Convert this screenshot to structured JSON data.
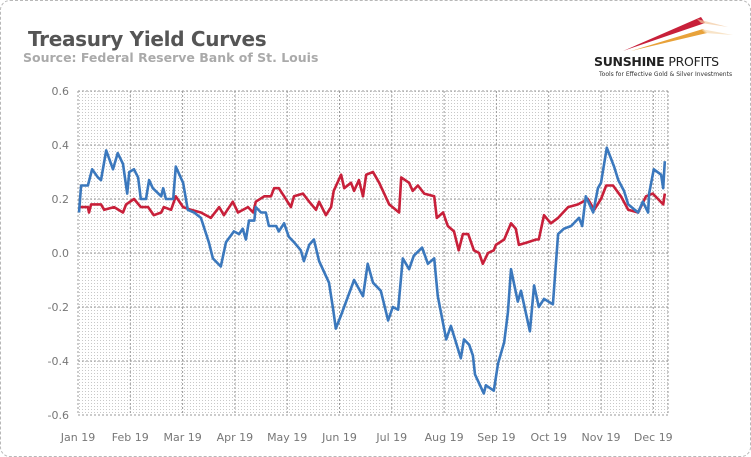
{
  "header": {
    "title": "Treasury Yield Curves",
    "source": "Source: Federal Reserve Bank of St. Louis"
  },
  "logo": {
    "name_bold": "SUNSHINE",
    "name_thin": "PROFITS",
    "tagline": "Tools for Effective Gold & Silver Investments"
  },
  "chart_data": {
    "type": "line",
    "title": "Treasury Yield Curves",
    "xlabel": "",
    "ylabel": "",
    "x_units": "month index (0 = Jan 1, 2019)",
    "xlim": [
      0,
      11.3
    ],
    "ylim": [
      -0.6,
      0.6
    ],
    "yticks": [
      -0.6,
      -0.4,
      -0.2,
      0.0,
      0.2,
      0.4,
      0.6
    ],
    "ytick_labels": [
      "-0.6",
      "-0.4",
      "-0.2",
      "0.0",
      "0.2",
      "0.4",
      "0.6"
    ],
    "xtick_labels": [
      "Jan 19",
      "Feb 19",
      "Mar 19",
      "Apr 19",
      "May 19",
      "Jun 19",
      "Jul 19",
      "Aug 19",
      "Sep 19",
      "Oct 19",
      "Nov 19",
      "Dec 19"
    ],
    "grid": true,
    "series": [
      {
        "name": "blue",
        "color": "#3b78bd",
        "points": [
          [
            0.02,
            0.15
          ],
          [
            0.06,
            0.25
          ],
          [
            0.19,
            0.25
          ],
          [
            0.27,
            0.31
          ],
          [
            0.38,
            0.28
          ],
          [
            0.44,
            0.27
          ],
          [
            0.54,
            0.38
          ],
          [
            0.67,
            0.31
          ],
          [
            0.76,
            0.37
          ],
          [
            0.86,
            0.33
          ],
          [
            0.94,
            0.22
          ],
          [
            0.98,
            0.3
          ],
          [
            1.07,
            0.31
          ],
          [
            1.15,
            0.28
          ],
          [
            1.2,
            0.2
          ],
          [
            1.3,
            0.2
          ],
          [
            1.36,
            0.27
          ],
          [
            1.43,
            0.24
          ],
          [
            1.59,
            0.21
          ],
          [
            1.63,
            0.24
          ],
          [
            1.68,
            0.2
          ],
          [
            1.82,
            0.2
          ],
          [
            1.87,
            0.32
          ],
          [
            2.01,
            0.26
          ],
          [
            2.1,
            0.16
          ],
          [
            2.22,
            0.15
          ],
          [
            2.35,
            0.13
          ],
          [
            2.5,
            0.04
          ],
          [
            2.58,
            -0.02
          ],
          [
            2.73,
            -0.05
          ],
          [
            2.83,
            0.04
          ],
          [
            2.98,
            0.08
          ],
          [
            3.08,
            0.07
          ],
          [
            3.15,
            0.09
          ],
          [
            3.21,
            0.05
          ],
          [
            3.27,
            0.12
          ],
          [
            3.37,
            0.12
          ],
          [
            3.4,
            0.17
          ],
          [
            3.5,
            0.15
          ],
          [
            3.59,
            0.15
          ],
          [
            3.65,
            0.1
          ],
          [
            3.79,
            0.1
          ],
          [
            3.84,
            0.08
          ],
          [
            3.94,
            0.11
          ],
          [
            4.03,
            0.06
          ],
          [
            4.13,
            0.04
          ],
          [
            4.26,
            0.01
          ],
          [
            4.32,
            -0.03
          ],
          [
            4.42,
            0.03
          ],
          [
            4.51,
            0.05
          ],
          [
            4.61,
            -0.03
          ],
          [
            4.8,
            -0.11
          ],
          [
            4.88,
            -0.21
          ],
          [
            4.93,
            -0.28
          ],
          [
            5.03,
            -0.23
          ],
          [
            5.28,
            -0.1
          ],
          [
            5.45,
            -0.16
          ],
          [
            5.54,
            -0.04
          ],
          [
            5.64,
            -0.11
          ],
          [
            5.79,
            -0.14
          ],
          [
            5.93,
            -0.25
          ],
          [
            6.02,
            -0.2
          ],
          [
            6.12,
            -0.21
          ],
          [
            6.21,
            -0.02
          ],
          [
            6.33,
            -0.06
          ],
          [
            6.42,
            -0.01
          ],
          [
            6.58,
            0.02
          ],
          [
            6.69,
            -0.04
          ],
          [
            6.81,
            -0.02
          ],
          [
            6.88,
            -0.16
          ],
          [
            7.04,
            -0.32
          ],
          [
            7.13,
            -0.27
          ],
          [
            7.32,
            -0.39
          ],
          [
            7.38,
            -0.32
          ],
          [
            7.48,
            -0.34
          ],
          [
            7.55,
            -0.38
          ],
          [
            7.59,
            -0.45
          ],
          [
            7.76,
            -0.52
          ],
          [
            7.8,
            -0.49
          ],
          [
            7.95,
            -0.51
          ],
          [
            8.03,
            -0.41
          ],
          [
            8.15,
            -0.33
          ],
          [
            8.22,
            -0.22
          ],
          [
            8.28,
            -0.06
          ],
          [
            8.41,
            -0.18
          ],
          [
            8.47,
            -0.14
          ],
          [
            8.64,
            -0.29
          ],
          [
            8.72,
            -0.12
          ],
          [
            8.81,
            -0.2
          ],
          [
            8.91,
            -0.17
          ],
          [
            9.08,
            -0.19
          ],
          [
            9.18,
            0.07
          ],
          [
            9.29,
            0.09
          ],
          [
            9.43,
            0.1
          ],
          [
            9.58,
            0.13
          ],
          [
            9.64,
            0.1
          ],
          [
            9.71,
            0.21
          ],
          [
            9.85,
            0.15
          ],
          [
            9.94,
            0.24
          ],
          [
            10.0,
            0.26
          ],
          [
            10.11,
            0.39
          ],
          [
            10.25,
            0.32
          ],
          [
            10.33,
            0.27
          ],
          [
            10.44,
            0.23
          ],
          [
            10.52,
            0.18
          ],
          [
            10.71,
            0.15
          ],
          [
            10.8,
            0.19
          ],
          [
            10.9,
            0.15
          ],
          [
            10.92,
            0.22
          ],
          [
            11.01,
            0.31
          ],
          [
            11.15,
            0.29
          ],
          [
            11.19,
            0.24
          ],
          [
            11.22,
            0.34
          ]
        ]
      },
      {
        "name": "red",
        "color": "#c8203a",
        "points": [
          [
            0.02,
            0.17
          ],
          [
            0.19,
            0.17
          ],
          [
            0.21,
            0.15
          ],
          [
            0.25,
            0.18
          ],
          [
            0.44,
            0.18
          ],
          [
            0.5,
            0.16
          ],
          [
            0.69,
            0.17
          ],
          [
            0.86,
            0.15
          ],
          [
            0.92,
            0.18
          ],
          [
            1.07,
            0.2
          ],
          [
            1.2,
            0.17
          ],
          [
            1.34,
            0.17
          ],
          [
            1.45,
            0.14
          ],
          [
            1.59,
            0.15
          ],
          [
            1.64,
            0.17
          ],
          [
            1.78,
            0.16
          ],
          [
            1.87,
            0.21
          ],
          [
            2.01,
            0.17
          ],
          [
            2.16,
            0.16
          ],
          [
            2.35,
            0.15
          ],
          [
            2.54,
            0.13
          ],
          [
            2.7,
            0.17
          ],
          [
            2.79,
            0.14
          ],
          [
            2.96,
            0.19
          ],
          [
            3.06,
            0.15
          ],
          [
            3.25,
            0.17
          ],
          [
            3.35,
            0.15
          ],
          [
            3.4,
            0.19
          ],
          [
            3.56,
            0.21
          ],
          [
            3.69,
            0.21
          ],
          [
            3.75,
            0.24
          ],
          [
            3.84,
            0.24
          ],
          [
            3.94,
            0.21
          ],
          [
            4.07,
            0.17
          ],
          [
            4.13,
            0.21
          ],
          [
            4.3,
            0.22
          ],
          [
            4.42,
            0.19
          ],
          [
            4.55,
            0.16
          ],
          [
            4.61,
            0.19
          ],
          [
            4.74,
            0.14
          ],
          [
            4.84,
            0.17
          ],
          [
            4.89,
            0.23
          ],
          [
            5.03,
            0.29
          ],
          [
            5.09,
            0.24
          ],
          [
            5.22,
            0.26
          ],
          [
            5.28,
            0.23
          ],
          [
            5.37,
            0.27
          ],
          [
            5.45,
            0.21
          ],
          [
            5.51,
            0.29
          ],
          [
            5.64,
            0.3
          ],
          [
            5.76,
            0.26
          ],
          [
            5.95,
            0.18
          ],
          [
            6.14,
            0.15
          ],
          [
            6.18,
            0.28
          ],
          [
            6.33,
            0.26
          ],
          [
            6.4,
            0.23
          ],
          [
            6.5,
            0.25
          ],
          [
            6.62,
            0.22
          ],
          [
            6.81,
            0.21
          ],
          [
            6.86,
            0.13
          ],
          [
            6.98,
            0.15
          ],
          [
            7.07,
            0.1
          ],
          [
            7.19,
            0.08
          ],
          [
            7.28,
            0.01
          ],
          [
            7.36,
            0.07
          ],
          [
            7.46,
            0.07
          ],
          [
            7.57,
            0.01
          ],
          [
            7.67,
            0.0
          ],
          [
            7.74,
            -0.04
          ],
          [
            7.84,
            0.0
          ],
          [
            7.95,
            0.01
          ],
          [
            7.99,
            0.03
          ],
          [
            8.15,
            0.05
          ],
          [
            8.28,
            0.11
          ],
          [
            8.37,
            0.09
          ],
          [
            8.43,
            0.03
          ],
          [
            8.6,
            0.04
          ],
          [
            8.76,
            0.05
          ],
          [
            8.81,
            0.05
          ],
          [
            8.91,
            0.14
          ],
          [
            9.04,
            0.11
          ],
          [
            9.18,
            0.13
          ],
          [
            9.37,
            0.17
          ],
          [
            9.56,
            0.18
          ],
          [
            9.75,
            0.2
          ],
          [
            9.87,
            0.16
          ],
          [
            10.0,
            0.2
          ],
          [
            10.1,
            0.25
          ],
          [
            10.23,
            0.25
          ],
          [
            10.38,
            0.21
          ],
          [
            10.52,
            0.16
          ],
          [
            10.71,
            0.15
          ],
          [
            10.86,
            0.21
          ],
          [
            10.99,
            0.22
          ],
          [
            11.19,
            0.18
          ],
          [
            11.22,
            0.22
          ]
        ]
      }
    ]
  }
}
